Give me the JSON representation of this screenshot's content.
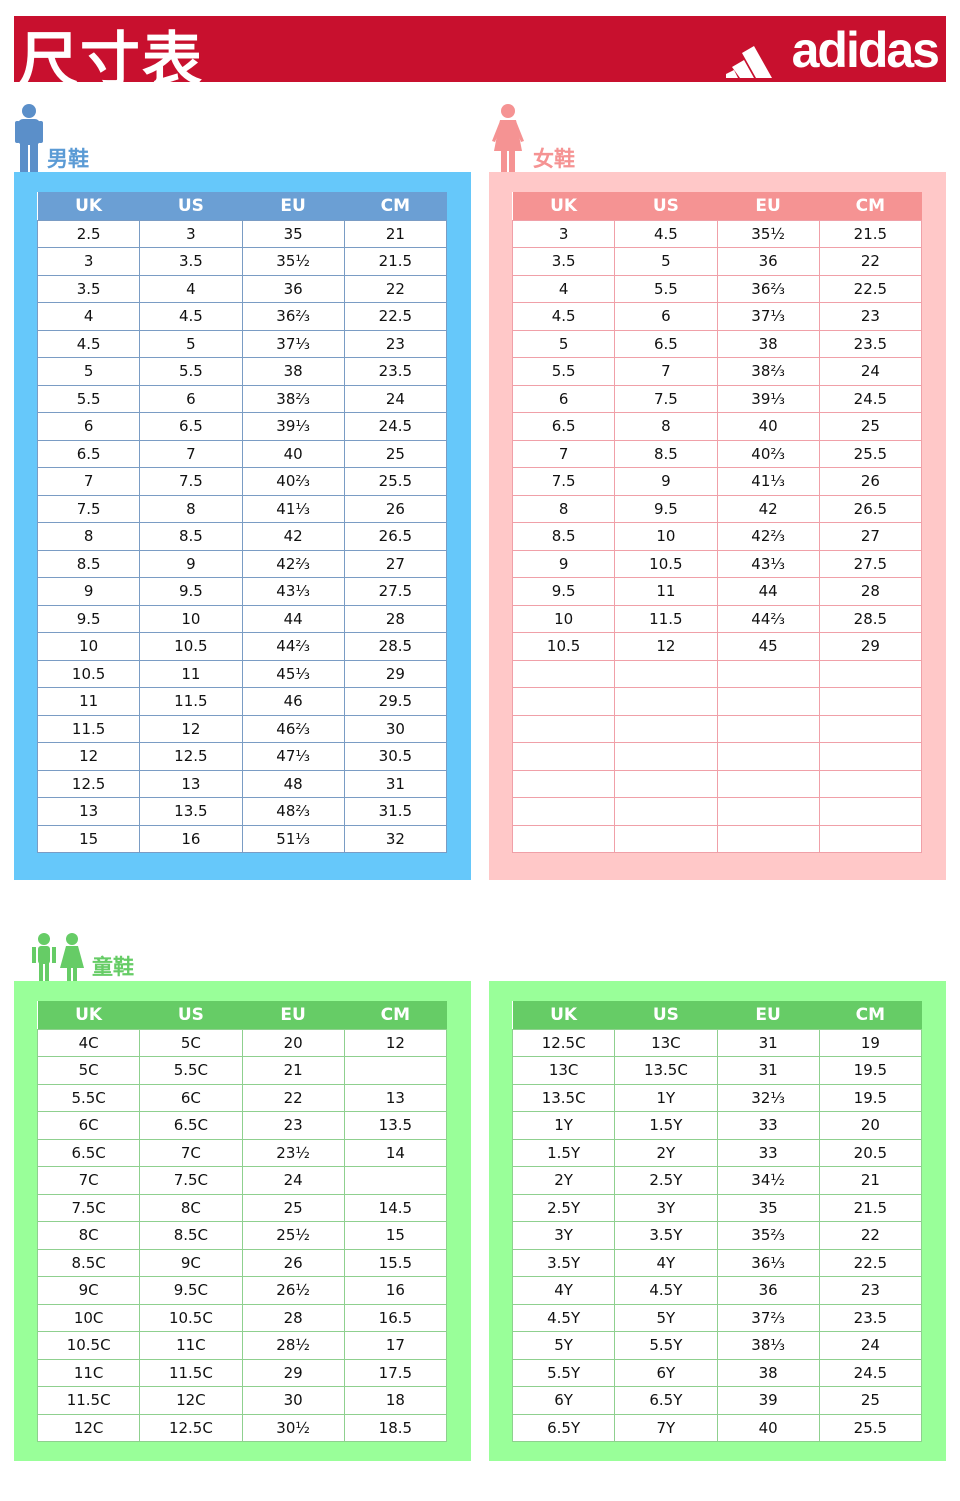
{
  "header": {
    "title": "尺寸表",
    "brand": "adidas",
    "brand_color": "#c8102e"
  },
  "columns": [
    "UK",
    "US",
    "EU",
    "CM"
  ],
  "men": {
    "label": "男鞋",
    "icon": "man-icon",
    "rows": [
      [
        "2.5",
        "3",
        "35",
        "21"
      ],
      [
        "3",
        "3.5",
        "35½",
        "21.5"
      ],
      [
        "3.5",
        "4",
        "36",
        "22"
      ],
      [
        "4",
        "4.5",
        "36⅔",
        "22.5"
      ],
      [
        "4.5",
        "5",
        "37⅓",
        "23"
      ],
      [
        "5",
        "5.5",
        "38",
        "23.5"
      ],
      [
        "5.5",
        "6",
        "38⅔",
        "24"
      ],
      [
        "6",
        "6.5",
        "39⅓",
        "24.5"
      ],
      [
        "6.5",
        "7",
        "40",
        "25"
      ],
      [
        "7",
        "7.5",
        "40⅔",
        "25.5"
      ],
      [
        "7.5",
        "8",
        "41⅓",
        "26"
      ],
      [
        "8",
        "8.5",
        "42",
        "26.5"
      ],
      [
        "8.5",
        "9",
        "42⅔",
        "27"
      ],
      [
        "9",
        "9.5",
        "43⅓",
        "27.5"
      ],
      [
        "9.5",
        "10",
        "44",
        "28"
      ],
      [
        "10",
        "10.5",
        "44⅔",
        "28.5"
      ],
      [
        "10.5",
        "11",
        "45⅓",
        "29"
      ],
      [
        "11",
        "11.5",
        "46",
        "29.5"
      ],
      [
        "11.5",
        "12",
        "46⅔",
        "30"
      ],
      [
        "12",
        "12.5",
        "47⅓",
        "30.5"
      ],
      [
        "12.5",
        "13",
        "48",
        "31"
      ],
      [
        "13",
        "13.5",
        "48⅔",
        "31.5"
      ],
      [
        "15",
        "16",
        "51⅓",
        "32"
      ]
    ]
  },
  "women": {
    "label": "女鞋",
    "icon": "woman-icon",
    "rows": [
      [
        "3",
        "4.5",
        "35½",
        "21.5"
      ],
      [
        "3.5",
        "5",
        "36",
        "22"
      ],
      [
        "4",
        "5.5",
        "36⅔",
        "22.5"
      ],
      [
        "4.5",
        "6",
        "37⅓",
        "23"
      ],
      [
        "5",
        "6.5",
        "38",
        "23.5"
      ],
      [
        "5.5",
        "7",
        "38⅔",
        "24"
      ],
      [
        "6",
        "7.5",
        "39⅓",
        "24.5"
      ],
      [
        "6.5",
        "8",
        "40",
        "25"
      ],
      [
        "7",
        "8.5",
        "40⅔",
        "25.5"
      ],
      [
        "7.5",
        "9",
        "41⅓",
        "26"
      ],
      [
        "8",
        "9.5",
        "42",
        "26.5"
      ],
      [
        "8.5",
        "10",
        "42⅔",
        "27"
      ],
      [
        "9",
        "10.5",
        "43⅓",
        "27.5"
      ],
      [
        "9.5",
        "11",
        "44",
        "28"
      ],
      [
        "10",
        "11.5",
        "44⅔",
        "28.5"
      ],
      [
        "10.5",
        "12",
        "45",
        "29"
      ],
      [
        "",
        "",
        "",
        ""
      ],
      [
        "",
        "",
        "",
        ""
      ],
      [
        "",
        "",
        "",
        ""
      ],
      [
        "",
        "",
        "",
        ""
      ],
      [
        "",
        "",
        "",
        ""
      ],
      [
        "",
        "",
        "",
        ""
      ],
      [
        "",
        "",
        "",
        ""
      ]
    ]
  },
  "kids": {
    "label": "童鞋",
    "icon": "children-icon",
    "left_rows": [
      [
        "4C",
        "5C",
        "20",
        "12"
      ],
      [
        "5C",
        "5.5C",
        "21",
        ""
      ],
      [
        "5.5C",
        "6C",
        "22",
        "13"
      ],
      [
        "6C",
        "6.5C",
        "23",
        "13.5"
      ],
      [
        "6.5C",
        "7C",
        "23½",
        "14"
      ],
      [
        "7C",
        "7.5C",
        "24",
        ""
      ],
      [
        "7.5C",
        "8C",
        "25",
        "14.5"
      ],
      [
        "8C",
        "8.5C",
        "25½",
        "15"
      ],
      [
        "8.5C",
        "9C",
        "26",
        "15.5"
      ],
      [
        "9C",
        "9.5C",
        "26½",
        "16"
      ],
      [
        "10C",
        "10.5C",
        "28",
        "16.5"
      ],
      [
        "10.5C",
        "11C",
        "28½",
        "17"
      ],
      [
        "11C",
        "11.5C",
        "29",
        "17.5"
      ],
      [
        "11.5C",
        "12C",
        "30",
        "18"
      ],
      [
        "12C",
        "12.5C",
        "30½",
        "18.5"
      ]
    ],
    "right_rows": [
      [
        "12.5C",
        "13C",
        "31",
        "19"
      ],
      [
        "13C",
        "13.5C",
        "31",
        "19.5"
      ],
      [
        "13.5C",
        "1Y",
        "32⅓",
        "19.5"
      ],
      [
        "1Y",
        "1.5Y",
        "33",
        "20"
      ],
      [
        "1.5Y",
        "2Y",
        "33",
        "20.5"
      ],
      [
        "2Y",
        "2.5Y",
        "34½",
        "21"
      ],
      [
        "2.5Y",
        "3Y",
        "35",
        "21.5"
      ],
      [
        "3Y",
        "3.5Y",
        "35⅔",
        "22"
      ],
      [
        "3.5Y",
        "4Y",
        "36⅓",
        "22.5"
      ],
      [
        "4Y",
        "4.5Y",
        "36",
        "23"
      ],
      [
        "4.5Y",
        "5Y",
        "37⅔",
        "23.5"
      ],
      [
        "5Y",
        "5.5Y",
        "38⅓",
        "24"
      ],
      [
        "5.5Y",
        "6Y",
        "38",
        "24.5"
      ],
      [
        "6Y",
        "6.5Y",
        "39",
        "25"
      ],
      [
        "6.5Y",
        "7Y",
        "40",
        "25.5"
      ]
    ]
  },
  "colors": {
    "men_panel": "#66c8fa",
    "men_header": "#6b9fd4",
    "women_panel": "#ffc8c8",
    "women_header": "#f59393",
    "kids_panel": "#99ff99",
    "kids_header": "#66cc66"
  }
}
